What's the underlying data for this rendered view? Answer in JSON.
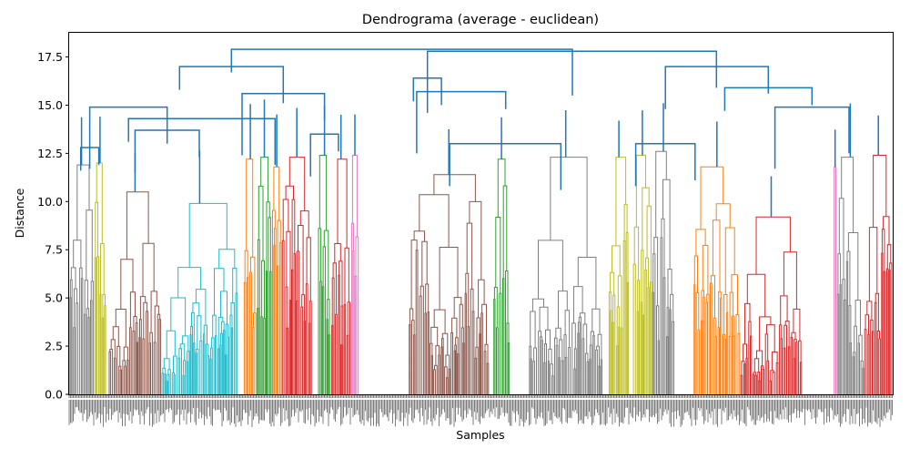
{
  "chart_data": {
    "type": "dendrogram",
    "title": "Dendrograma (average - euclidean)",
    "xlabel": "Samples",
    "ylabel": "Distance",
    "ylim": [
      0,
      18.8
    ],
    "y_ticks": [
      0.0,
      2.5,
      5.0,
      7.5,
      10.0,
      12.5,
      15.0,
      17.5
    ],
    "y_tick_labels": [
      "0.0",
      "2.5",
      "5.0",
      "7.5",
      "10.0",
      "12.5",
      "15.0",
      "17.5"
    ],
    "grid": false,
    "link_color_above_threshold": "#1f77b4",
    "clusters": [
      {
        "color": "#7f7f7f",
        "start": 0.0,
        "end": 0.03,
        "height": 11.9
      },
      {
        "color": "#bcbd22",
        "start": 0.03,
        "end": 0.045,
        "height": 12.0
      },
      {
        "color": "#8c564b",
        "start": 0.048,
        "end": 0.112,
        "height": 10.5
      },
      {
        "color": "#17becf",
        "start": 0.112,
        "end": 0.205,
        "height": 9.9
      },
      {
        "color": "#ff7f0e",
        "start": 0.212,
        "end": 0.228,
        "height": 12.2
      },
      {
        "color": "#2ca02c",
        "start": 0.228,
        "end": 0.246,
        "height": 12.3
      },
      {
        "color": "#ff7f0e",
        "start": 0.246,
        "end": 0.258,
        "height": 11.8
      },
      {
        "color": "#d62728",
        "start": 0.258,
        "end": 0.295,
        "height": 12.3
      },
      {
        "color": "#2ca02c",
        "start": 0.302,
        "end": 0.318,
        "height": 12.4
      },
      {
        "color": "#d62728",
        "start": 0.318,
        "end": 0.342,
        "height": 12.2
      },
      {
        "color": "#e377c2",
        "start": 0.342,
        "end": 0.352,
        "height": 12.4
      },
      {
        "color": "#8c564b",
        "start": 0.412,
        "end": 0.51,
        "height": 11.4
      },
      {
        "color": "#2ca02c",
        "start": 0.515,
        "end": 0.535,
        "height": 12.2
      },
      {
        "color": "#7f7f7f",
        "start": 0.558,
        "end": 0.648,
        "height": 12.3
      },
      {
        "color": "#bcbd22",
        "start": 0.655,
        "end": 0.68,
        "height": 12.3
      },
      {
        "color": "#bcbd22",
        "start": 0.684,
        "end": 0.708,
        "height": 12.4
      },
      {
        "color": "#7f7f7f",
        "start": 0.708,
        "end": 0.735,
        "height": 12.6
      },
      {
        "color": "#ff7f0e",
        "start": 0.758,
        "end": 0.815,
        "height": 11.8
      },
      {
        "color": "#d62728",
        "start": 0.815,
        "end": 0.89,
        "height": 9.2
      },
      {
        "color": "#e377c2",
        "start": 0.928,
        "end": 0.932,
        "height": 11.8
      },
      {
        "color": "#7f7f7f",
        "start": 0.932,
        "end": 0.965,
        "height": 12.3
      },
      {
        "color": "#d62728",
        "start": 0.965,
        "end": 1.0,
        "height": 12.4
      }
    ],
    "top_links": [
      {
        "a": 0.014,
        "b": 0.036,
        "height": 12.8
      },
      {
        "a": 0.08,
        "b": 0.158,
        "height": 13.7
      },
      {
        "a": 0.025,
        "b": 0.119,
        "height": 14.9
      },
      {
        "a": 0.072,
        "b": 0.25,
        "height": 14.3
      },
      {
        "a": 0.293,
        "b": 0.327,
        "height": 13.5
      },
      {
        "a": 0.21,
        "b": 0.31,
        "height": 15.6
      },
      {
        "a": 0.134,
        "b": 0.26,
        "height": 17.0
      },
      {
        "a": 0.462,
        "b": 0.597,
        "height": 13.0
      },
      {
        "a": 0.422,
        "b": 0.53,
        "height": 15.7
      },
      {
        "a": 0.418,
        "b": 0.452,
        "height": 16.4
      },
      {
        "a": 0.688,
        "b": 0.76,
        "height": 13.0
      },
      {
        "a": 0.857,
        "b": 0.947,
        "height": 14.9
      },
      {
        "a": 0.796,
        "b": 0.902,
        "height": 15.9
      },
      {
        "a": 0.724,
        "b": 0.849,
        "height": 17.0
      },
      {
        "a": 0.435,
        "b": 0.786,
        "height": 17.8
      },
      {
        "a": 0.197,
        "b": 0.611,
        "height": 17.9
      }
    ]
  }
}
